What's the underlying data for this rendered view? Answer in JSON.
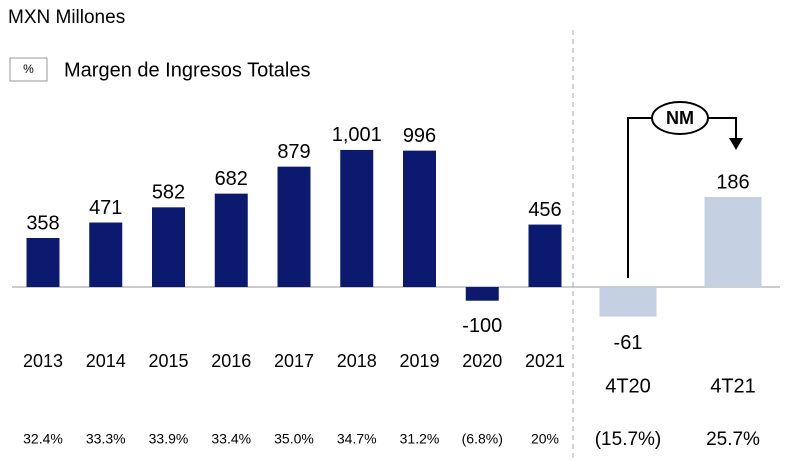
{
  "chart_data": [
    {
      "type": "bar",
      "subtitle": "MXN Millones",
      "legend": {
        "symbol": "%",
        "label": "Margen de Ingresos Totales"
      },
      "categories": [
        "2013",
        "2014",
        "2015",
        "2016",
        "2017",
        "2018",
        "2019",
        "2020",
        "2021"
      ],
      "values": [
        358,
        471,
        582,
        682,
        879,
        1001,
        996,
        -100,
        456
      ],
      "value_labels": [
        "358",
        "471",
        "582",
        "682",
        "879",
        "1,001",
        "996",
        "-100",
        "456"
      ],
      "margins": [
        "32.4%",
        "33.3%",
        "33.9%",
        "33.4%",
        "35.0%",
        "34.7%",
        "31.2%",
        "(6.8%)",
        "20%"
      ],
      "color": "#0b1a6e",
      "ylim": [
        -200,
        1100
      ]
    },
    {
      "type": "bar",
      "categories": [
        "4T20",
        "4T21"
      ],
      "values": [
        -61,
        186
      ],
      "margins": [
        "(15.7%)",
        "25.7%"
      ],
      "annotation": "NM",
      "color": "#c5d0e2",
      "ylim": [
        -100,
        250
      ]
    }
  ]
}
